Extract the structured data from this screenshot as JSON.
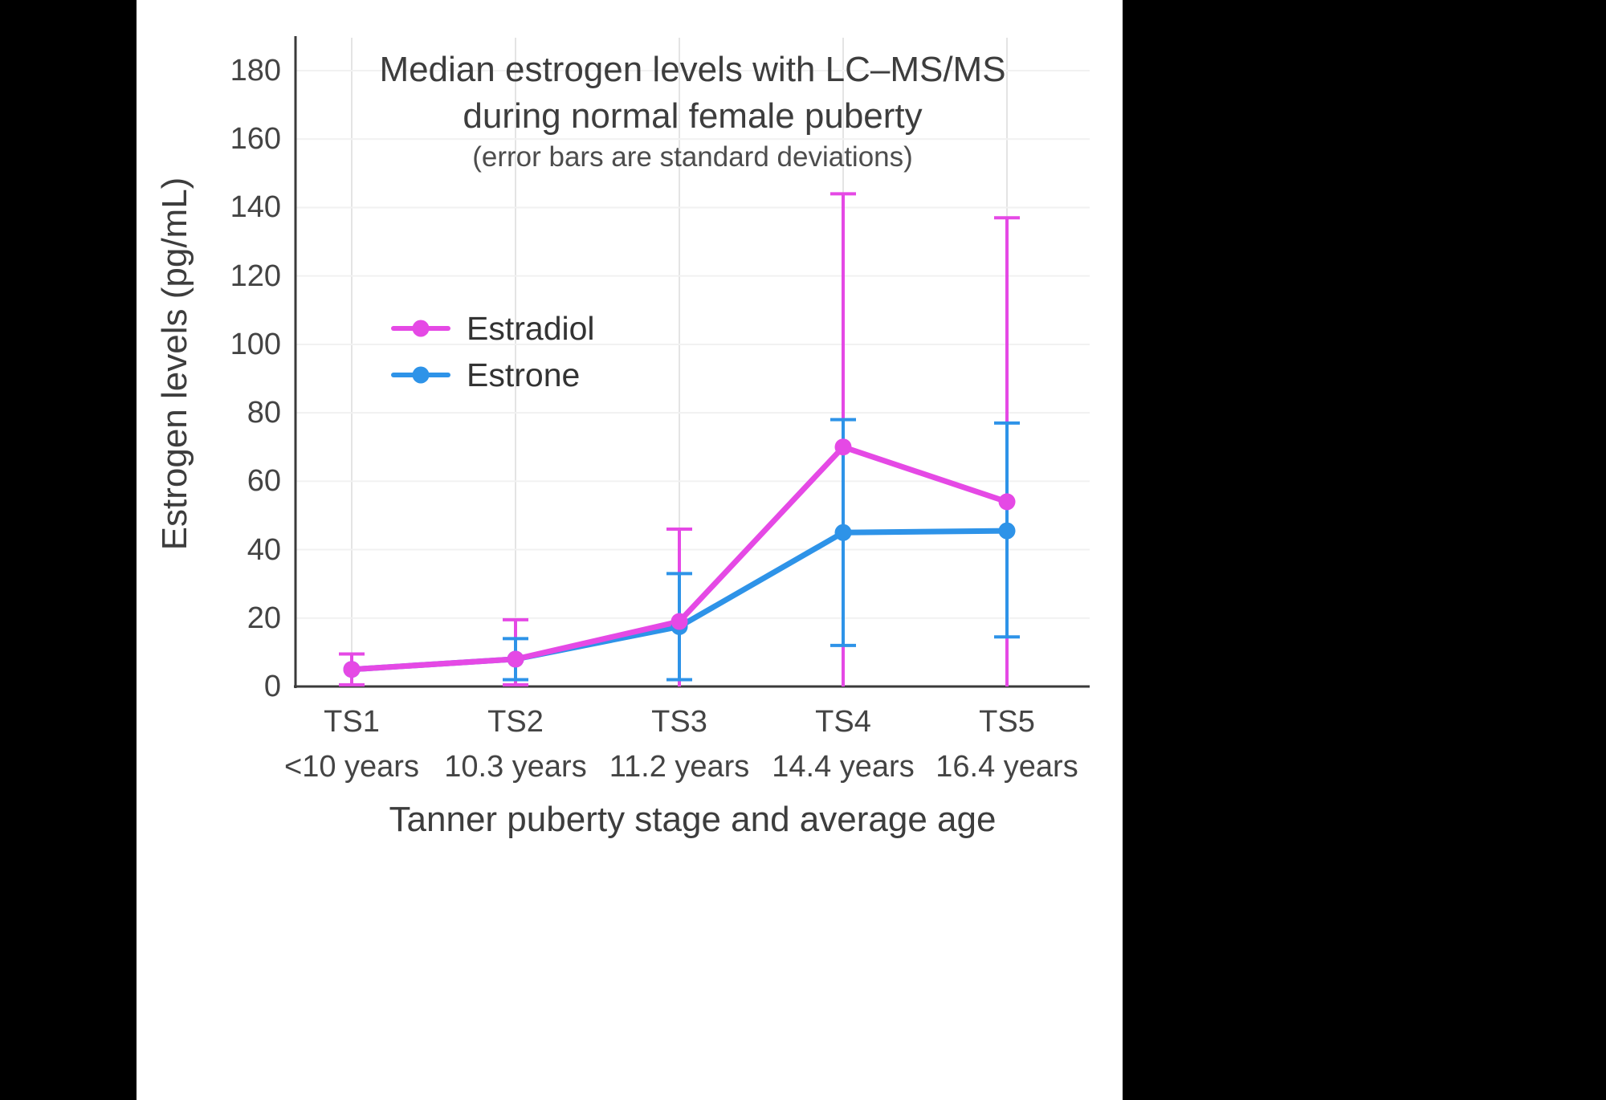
{
  "page": {
    "background": "#000000",
    "panel_background": "#ffffff"
  },
  "chart_data": {
    "type": "line",
    "title_line1": "Median estrogen levels with LC–MS/MS",
    "title_line2": "during normal female puberty",
    "subtitle": "(error bars are standard deviations)",
    "xlabel": "Tanner puberty stage and average age",
    "ylabel": "Estrogen levels (pg/mL)",
    "categories": [
      "TS1",
      "TS2",
      "TS3",
      "TS4",
      "TS5"
    ],
    "category_sublabels": [
      "<10 years",
      "10.3 years",
      "11.2 years",
      "14.4 years",
      "16.4 years"
    ],
    "yticks": [
      0,
      20,
      40,
      60,
      80,
      100,
      120,
      140,
      160,
      180
    ],
    "ylim": [
      0,
      190
    ],
    "grid": true,
    "legend_position": "inside-upper-left",
    "axis_color": "#3a3a3a",
    "grid_color_vertical": "#e4e4e4",
    "grid_color_horizontal": "#f1f1f1",
    "series": [
      {
        "name": "Estradiol",
        "color": "#e549e5",
        "values": [
          5,
          8,
          19,
          70,
          54
        ],
        "error_high": [
          9.5,
          19.5,
          46,
          144,
          137
        ],
        "error_low": [
          0.5,
          0.5,
          0,
          0,
          0
        ]
      },
      {
        "name": "Estrone",
        "color": "#2e93e8",
        "values": [
          5,
          8,
          17.5,
          45,
          45.5
        ],
        "error_high": [
          null,
          14,
          33,
          78,
          77
        ],
        "error_low": [
          null,
          2,
          2,
          12,
          14.5
        ]
      }
    ]
  }
}
